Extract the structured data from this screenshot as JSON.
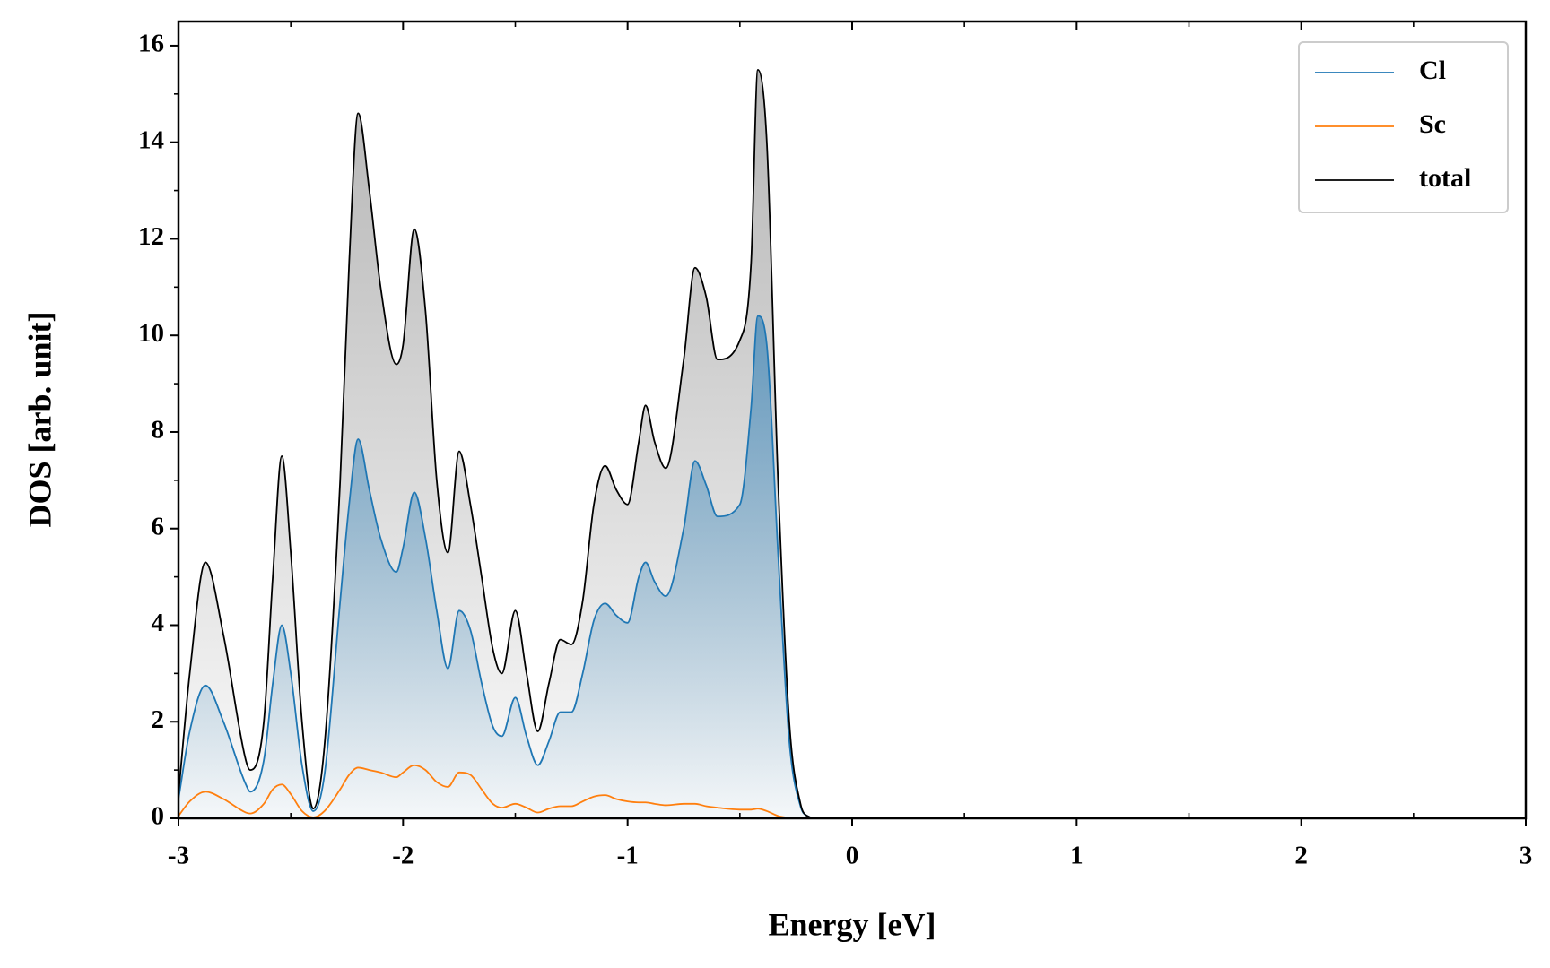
{
  "chart_data": {
    "type": "line",
    "xlabel": "Energy [eV]",
    "ylabel": "DOS [arb. unit]",
    "x": [
      -3,
      -2.95,
      -2.88,
      -2.8,
      -2.7,
      -2.68,
      -2.62,
      -2.58,
      -2.54,
      -2.5,
      -2.45,
      -2.4,
      -2.35,
      -2.28,
      -2.24,
      -2.2,
      -2.15,
      -2.1,
      -2.03,
      -2.0,
      -1.95,
      -1.9,
      -1.85,
      -1.8,
      -1.75,
      -1.7,
      -1.65,
      -1.6,
      -1.56,
      -1.5,
      -1.45,
      -1.4,
      -1.35,
      -1.3,
      -1.25,
      -1.2,
      -1.15,
      -1.1,
      -1.05,
      -1.0,
      -0.95,
      -0.92,
      -0.88,
      -0.83,
      -0.75,
      -0.7,
      -0.65,
      -0.6,
      -0.5,
      -0.45,
      -0.42,
      -0.38,
      -0.33,
      -0.28,
      -0.23,
      -0.2,
      -0.15,
      3
    ],
    "series": [
      {
        "name": "Cl",
        "color": "#1f77b4",
        "filled": true,
        "values": [
          0.4,
          1.8,
          2.75,
          2.0,
          0.7,
          0.55,
          1.2,
          2.8,
          4.0,
          3.0,
          1.1,
          0.15,
          0.9,
          4.5,
          6.5,
          7.85,
          6.8,
          5.8,
          5.1,
          5.6,
          6.75,
          5.8,
          4.3,
          3.1,
          4.3,
          3.9,
          2.8,
          1.9,
          1.7,
          2.5,
          1.7,
          1.1,
          1.6,
          2.2,
          2.2,
          3.0,
          4.1,
          4.45,
          4.2,
          4.05,
          5.0,
          5.3,
          4.9,
          4.6,
          6.0,
          7.4,
          6.9,
          6.25,
          6.5,
          8.5,
          10.4,
          9.8,
          5.5,
          1.6,
          0.25,
          0.05,
          0,
          0
        ]
      },
      {
        "name": "Sc",
        "color": "#ff7f0e",
        "filled": false,
        "values": [
          0.05,
          0.35,
          0.55,
          0.4,
          0.12,
          0.1,
          0.3,
          0.6,
          0.7,
          0.5,
          0.15,
          0.02,
          0.15,
          0.6,
          0.9,
          1.05,
          1.0,
          0.95,
          0.85,
          0.95,
          1.1,
          1.0,
          0.75,
          0.65,
          0.95,
          0.9,
          0.6,
          0.3,
          0.22,
          0.3,
          0.22,
          0.12,
          0.2,
          0.25,
          0.25,
          0.35,
          0.45,
          0.48,
          0.4,
          0.35,
          0.33,
          0.33,
          0.3,
          0.27,
          0.3,
          0.3,
          0.25,
          0.22,
          0.18,
          0.18,
          0.2,
          0.15,
          0.05,
          0.01,
          0,
          0,
          0,
          0
        ]
      },
      {
        "name": "total",
        "color": "#000000",
        "filled": true,
        "fill_color": "#8c8c8c",
        "values": [
          0.5,
          3,
          5.3,
          3.8,
          1.2,
          1.0,
          2,
          5,
          7.5,
          5.5,
          2,
          0.2,
          1.5,
          7,
          11.5,
          14.6,
          13,
          11,
          9.4,
          9.8,
          12.2,
          10.5,
          7,
          5.5,
          7.6,
          6.5,
          5,
          3.5,
          3.0,
          4.3,
          3,
          1.8,
          2.8,
          3.7,
          3.6,
          4.5,
          6.5,
          7.3,
          6.8,
          6.5,
          7.8,
          8.55,
          7.8,
          7.25,
          9.5,
          11.4,
          10.8,
          9.5,
          9.9,
          11.5,
          15.5,
          14,
          7,
          2,
          0.3,
          0.05,
          0,
          0
        ]
      }
    ],
    "xlim": [
      -3,
      3
    ],
    "ylim": [
      0,
      16.5
    ],
    "xticks": [
      -3,
      -2,
      -1,
      0,
      1,
      2,
      3
    ],
    "yticks": [
      0,
      2,
      4,
      6,
      8,
      10,
      12,
      14,
      16
    ],
    "xminorticks": [
      -2.5,
      -1.5,
      -0.5,
      0.5,
      1.5,
      2.5
    ],
    "yminorticks": [
      1,
      3,
      5,
      7,
      9,
      11,
      13,
      15
    ],
    "legend": "upper right",
    "grid": false
  }
}
